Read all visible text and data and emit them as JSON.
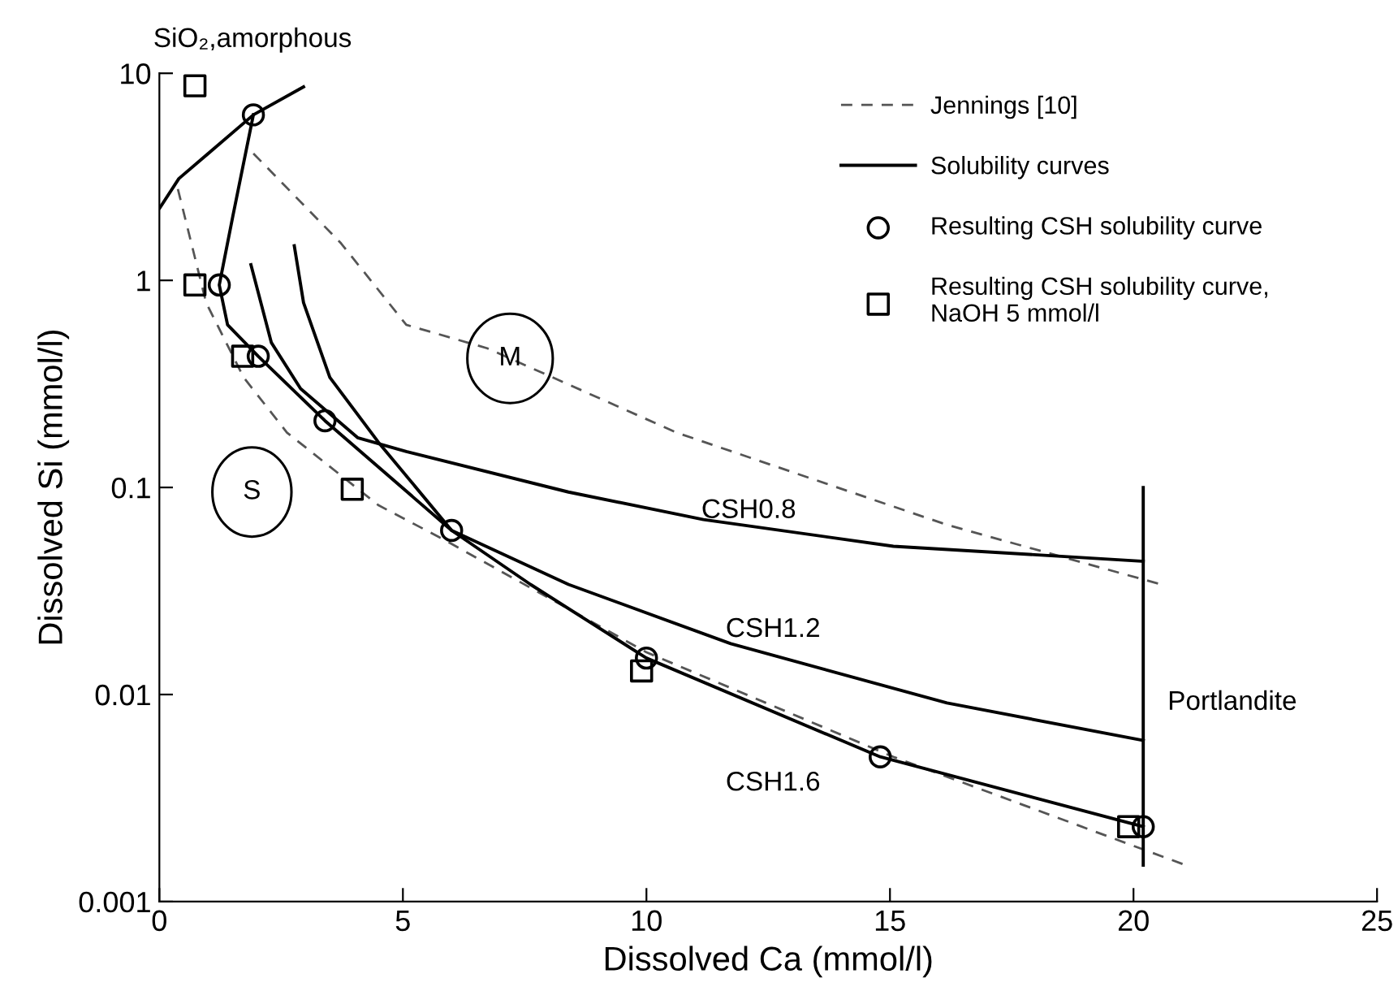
{
  "chart_data": {
    "type": "line",
    "xlabel": "Dissolved Ca (mmol/l)",
    "ylabel": "Dissolved Si (mmol/l)",
    "log": "y",
    "xlim": [
      0,
      25
    ],
    "xticks": [
      0,
      5,
      10,
      15,
      20,
      25
    ],
    "ylim": [
      0.001,
      10
    ],
    "yticks": [
      0.001,
      0.01,
      0.1,
      1,
      10
    ],
    "grid": false,
    "legend": "top right",
    "series": [
      {
        "name": "Jennings [10]",
        "line_style": "dashed",
        "color": "#555555",
        "x": [
          1.93,
          3.73,
          5.07,
          6.73,
          10.62,
          16.17,
          20.57
        ],
        "values": [
          4.1,
          1.51,
          0.61,
          0.47,
          0.184,
          0.066,
          0.034
        ]
      },
      {
        "line_style": "dashed",
        "color": "#555555",
        "x": [
          0.38,
          0.96,
          1.73,
          2.62,
          4.5,
          5.84,
          10,
          15.07,
          21.07
        ],
        "values": [
          2.76,
          0.78,
          0.34,
          0.184,
          0.082,
          0.056,
          0.016,
          0.005,
          0.0015
        ]
      },
      {
        "name": "Solubility curves",
        "line_style": "solid",
        "color": "#000000",
        "x": [
          1.88,
          2.3,
          2.9,
          4.07,
          5.07,
          8.4,
          11.17,
          15.07,
          20.2
        ],
        "values": [
          1.19,
          0.5,
          0.3,
          0.174,
          0.149,
          0.095,
          0.07,
          0.052,
          0.044
        ]
      },
      {
        "line_style": "solid",
        "color": "#000000",
        "x": [
          1.93,
          1.51,
          1.23,
          1.4,
          2.03,
          3.4,
          6.0,
          8.4,
          11.73,
          16.17,
          20.2
        ],
        "values": [
          6.3,
          2.05,
          0.95,
          0.61,
          0.43,
          0.21,
          0.062,
          0.034,
          0.0176,
          0.0091,
          0.006
        ]
      },
      {
        "line_style": "solid",
        "color": "#000000",
        "x": [
          2.77,
          2.96,
          3.5,
          4.5,
          6.0,
          7.62,
          10.0,
          14.8,
          20.2
        ],
        "values": [
          1.47,
          0.78,
          0.34,
          0.165,
          0.062,
          0.034,
          0.015,
          0.005,
          0.0023
        ]
      },
      {
        "line_style": "solid",
        "color": "#000000",
        "x": [
          0.01,
          0.4,
          1.93,
          2.96
        ],
        "values": [
          2.24,
          3.1,
          6.3,
          8.6
        ]
      },
      {
        "line_style": "solid",
        "color": "#000000",
        "x": [
          20.2,
          20.2
        ],
        "values": [
          0.1,
          0.0015
        ]
      },
      {
        "name": "Resulting CSH solubility curve",
        "type": "scatter",
        "marker": "circle",
        "color": "#000000",
        "x": [
          1.93,
          1.23,
          2.03,
          3.4,
          6.0,
          10.0,
          14.8,
          20.2
        ],
        "values": [
          6.3,
          0.95,
          0.43,
          0.21,
          0.062,
          0.015,
          0.005,
          0.0023
        ]
      },
      {
        "name": "Resulting CSH solubility curve,\nNaOH 5 mmol/l",
        "type": "scatter",
        "marker": "square",
        "color": "#000000",
        "x": [
          0.73,
          0.73,
          1.71,
          3.96,
          9.9,
          19.9
        ],
        "values": [
          8.7,
          0.95,
          0.43,
          0.098,
          0.013,
          0.0023
        ]
      }
    ],
    "annotations": [
      "SiO₂,amorphous",
      {
        "text": "M",
        "x": 7.2,
        "y": 0.42
      },
      "S",
      "CSH0.8",
      "CSH1.2",
      "CSH1.6",
      "Portlandite"
    ]
  }
}
